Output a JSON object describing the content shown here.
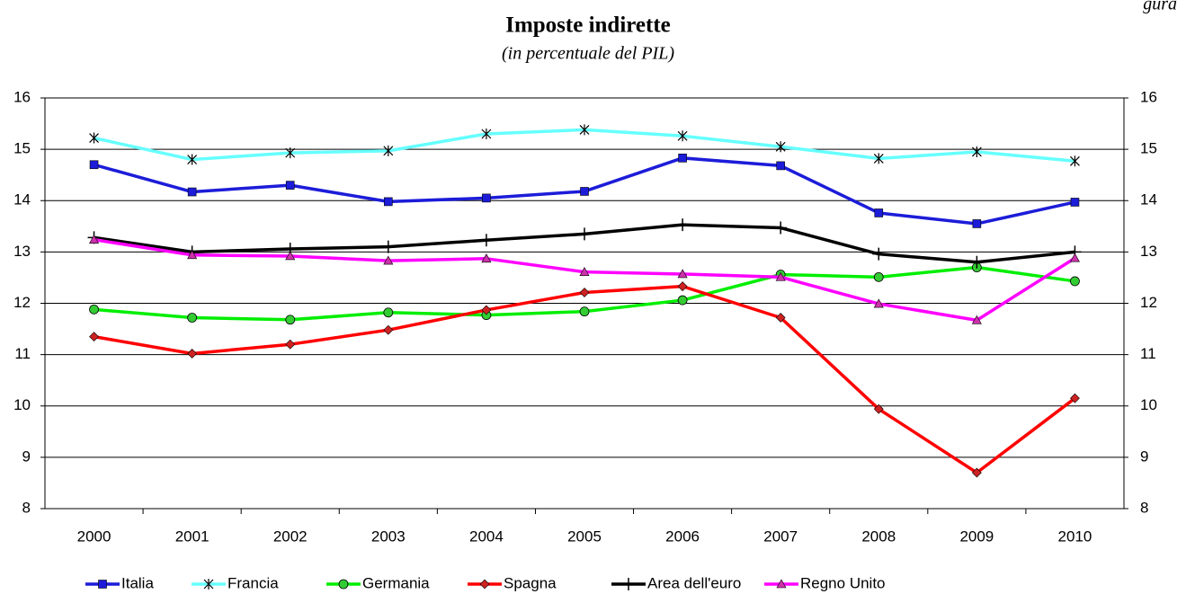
{
  "chart_data": {
    "type": "line",
    "title": "Imposte indirette",
    "subtitle": "(in percentuale del PIL)",
    "corner_label": "gura",
    "categories": [
      "2000",
      "2001",
      "2002",
      "2003",
      "2004",
      "2005",
      "2006",
      "2007",
      "2008",
      "2009",
      "2010"
    ],
    "ylim": [
      8,
      16
    ],
    "yticks": [
      8,
      9,
      10,
      11,
      12,
      13,
      14,
      15,
      16
    ],
    "y2lim": [
      8,
      16
    ],
    "y2ticks": [
      8,
      9,
      10,
      11,
      12,
      13,
      14,
      15,
      16
    ],
    "grid": true,
    "legend": "bottom",
    "series": [
      {
        "name": "Italia",
        "color": "#1c1cd9",
        "marker": "square",
        "marker_color": "#1c1cd9",
        "values": [
          14.7,
          14.17,
          14.3,
          13.98,
          14.05,
          14.18,
          14.83,
          14.68,
          13.76,
          13.55,
          13.97
        ]
      },
      {
        "name": "Francia",
        "color": "#66ffff",
        "marker": "asterisk",
        "marker_color": "#000000",
        "values": [
          15.22,
          14.8,
          14.93,
          14.97,
          15.3,
          15.38,
          15.26,
          15.05,
          14.82,
          14.95,
          14.77
        ]
      },
      {
        "name": "Germania",
        "color": "#00ee00",
        "marker": "circle",
        "marker_color": "#33cc33",
        "values": [
          11.88,
          11.72,
          11.68,
          11.82,
          11.77,
          11.84,
          12.06,
          12.56,
          12.51,
          12.7,
          12.43
        ]
      },
      {
        "name": "Spagna",
        "color": "#ff0000",
        "marker": "diamond",
        "marker_color": "#cc2222",
        "values": [
          11.35,
          11.02,
          11.2,
          11.48,
          11.87,
          12.21,
          12.33,
          11.72,
          9.94,
          8.7,
          10.15
        ]
      },
      {
        "name": "Area dell'euro",
        "color": "#000000",
        "marker": "plus",
        "marker_color": "#000000",
        "values": [
          13.28,
          13.0,
          13.06,
          13.1,
          13.23,
          13.35,
          13.53,
          13.47,
          12.96,
          12.8,
          13.0
        ]
      },
      {
        "name": "Regno Unito",
        "color": "#ff00ff",
        "marker": "triangle",
        "marker_color": "#cc33aa",
        "values": [
          13.24,
          12.94,
          12.92,
          12.83,
          12.87,
          12.61,
          12.57,
          12.51,
          11.99,
          11.67,
          12.88
        ]
      }
    ]
  }
}
